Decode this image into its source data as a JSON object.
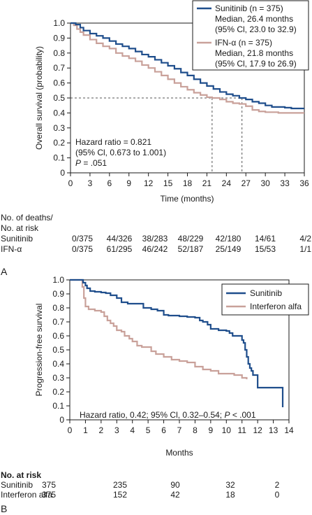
{
  "colors": {
    "sunitinib": "#1f4e8c",
    "comparator": "#c9a19a",
    "reference_lines": "#555555",
    "text": "#1a1a1a"
  },
  "chart_data": [
    {
      "panel": "A",
      "type": "line",
      "title": "",
      "xlabel": "Time (months)",
      "ylabel": "Overall survival (probability)",
      "xlim": [
        0,
        36
      ],
      "ylim": [
        0,
        1.0
      ],
      "xticks": [
        0,
        3,
        6,
        9,
        12,
        15,
        18,
        21,
        24,
        27,
        30,
        33,
        36
      ],
      "yticks": [
        "0",
        "0.1",
        "0.2",
        "0.3",
        "0.4",
        "0.5",
        "0.6",
        "0.7",
        "0.8",
        "0.9",
        "1.0"
      ],
      "grid": false,
      "legend_position": "top-right",
      "series": [
        {
          "name": "Sunitinib (n = 375)",
          "legend_lines": [
            "Sunitinib (n = 375)",
            "Median, 26.4 months",
            "(95% Cl, 23.0 to 32.9)"
          ],
          "color_key": "sunitinib",
          "points": [
            [
              0,
              1.0
            ],
            [
              0.8,
              0.99
            ],
            [
              1.5,
              0.97
            ],
            [
              2,
              0.95
            ],
            [
              3,
              0.93
            ],
            [
              4,
              0.915
            ],
            [
              5,
              0.9
            ],
            [
              6,
              0.88
            ],
            [
              7,
              0.86
            ],
            [
              8,
              0.845
            ],
            [
              9,
              0.83
            ],
            [
              10,
              0.81
            ],
            [
              11,
              0.79
            ],
            [
              12,
              0.775
            ],
            [
              13,
              0.755
            ],
            [
              14,
              0.735
            ],
            [
              15,
              0.715
            ],
            [
              16,
              0.695
            ],
            [
              17,
              0.67
            ],
            [
              18,
              0.65
            ],
            [
              19,
              0.625
            ],
            [
              20,
              0.6
            ],
            [
              21,
              0.58
            ],
            [
              22,
              0.56
            ],
            [
              23,
              0.54
            ],
            [
              24,
              0.525
            ],
            [
              25,
              0.515
            ],
            [
              26,
              0.5
            ],
            [
              27,
              0.49
            ],
            [
              28,
              0.475
            ],
            [
              29,
              0.465
            ],
            [
              30,
              0.45
            ],
            [
              31,
              0.44
            ],
            [
              32,
              0.44
            ],
            [
              33,
              0.435
            ],
            [
              34,
              0.43
            ],
            [
              36,
              0.43
            ]
          ]
        },
        {
          "name": "IFN-α (n = 375)",
          "legend_lines": [
            "IFN-α (n = 375)",
            "Median, 21.8 months",
            "(95% Cl, 17.9 to 26.9)"
          ],
          "color_key": "comparator",
          "points": [
            [
              0,
              1.0
            ],
            [
              0.5,
              0.985
            ],
            [
              1,
              0.96
            ],
            [
              1.5,
              0.94
            ],
            [
              2,
              0.92
            ],
            [
              3,
              0.89
            ],
            [
              4,
              0.865
            ],
            [
              5,
              0.845
            ],
            [
              6,
              0.83
            ],
            [
              7,
              0.8
            ],
            [
              8,
              0.78
            ],
            [
              9,
              0.765
            ],
            [
              10,
              0.745
            ],
            [
              11,
              0.72
            ],
            [
              12,
              0.7
            ],
            [
              13,
              0.675
            ],
            [
              14,
              0.65
            ],
            [
              15,
              0.625
            ],
            [
              16,
              0.6
            ],
            [
              17,
              0.575
            ],
            [
              18,
              0.555
            ],
            [
              19,
              0.535
            ],
            [
              20,
              0.52
            ],
            [
              21,
              0.505
            ],
            [
              21.8,
              0.5
            ],
            [
              23,
              0.49
            ],
            [
              24,
              0.475
            ],
            [
              25,
              0.465
            ],
            [
              26,
              0.46
            ],
            [
              27,
              0.445
            ],
            [
              28,
              0.42
            ],
            [
              29,
              0.41
            ],
            [
              30,
              0.405
            ],
            [
              32,
              0.4
            ],
            [
              34,
              0.4
            ],
            [
              36,
              0.4
            ]
          ]
        }
      ],
      "reference_lines": [
        {
          "type": "h",
          "y": 0.5,
          "x_end": 26.4
        },
        {
          "type": "v",
          "x": 21.8,
          "y_end": 0.5
        },
        {
          "type": "v",
          "x": 26.4,
          "y_end": 0.5
        }
      ],
      "annotation": {
        "lines": [
          "Hazard ratio = 0.821",
          "(95% Cl, 0.673 to 1.001)"
        ],
        "p_label": "P",
        "p_value": " = .051"
      },
      "risk_table": {
        "header": [
          "No. of deaths/",
          "No. at risk"
        ],
        "bold_labels": false,
        "rows": [
          {
            "label": "Sunitinib",
            "values": [
              "0/375",
              "44/326",
              "38/283",
              "48/229",
              "42/180",
              "14/61",
              "4/2"
            ]
          },
          {
            "label": "IFN-α",
            "values": [
              "0/375",
              "61/295",
              "46/242",
              "52/187",
              "25/149",
              "15/53",
              "1/1"
            ]
          }
        ]
      },
      "panel_letter": "A"
    },
    {
      "panel": "B",
      "type": "line",
      "title": "",
      "xlabel": "Months",
      "ylabel": "Progression-free survival",
      "xlim": [
        0,
        14
      ],
      "ylim": [
        0,
        1.0
      ],
      "xticks": [
        0,
        1,
        2,
        3,
        4,
        5,
        6,
        7,
        8,
        9,
        10,
        11,
        12,
        13,
        14
      ],
      "yticks": [
        "0",
        "0.1",
        "0.2",
        "0.3",
        "0.4",
        "0.5",
        "0.6",
        "0.7",
        "0.8",
        "0.9",
        "1.0"
      ],
      "grid": false,
      "legend_position": "top-right",
      "series": [
        {
          "name": "Sunitinib",
          "legend_lines": [
            "Sunitinib"
          ],
          "color_key": "sunitinib",
          "points": [
            [
              0,
              1.0
            ],
            [
              0.7,
              1.0
            ],
            [
              0.85,
              0.98
            ],
            [
              1,
              0.96
            ],
            [
              1.1,
              0.94
            ],
            [
              1.3,
              0.92
            ],
            [
              1.6,
              0.915
            ],
            [
              2,
              0.91
            ],
            [
              2.3,
              0.905
            ],
            [
              2.6,
              0.89
            ],
            [
              3,
              0.87
            ],
            [
              3.3,
              0.84
            ],
            [
              3.7,
              0.83
            ],
            [
              4,
              0.83
            ],
            [
              4.4,
              0.83
            ],
            [
              4.7,
              0.8
            ],
            [
              5.2,
              0.79
            ],
            [
              5.6,
              0.78
            ],
            [
              6,
              0.75
            ],
            [
              6.3,
              0.745
            ],
            [
              7,
              0.74
            ],
            [
              7.5,
              0.735
            ],
            [
              8,
              0.73
            ],
            [
              8.3,
              0.71
            ],
            [
              8.5,
              0.7
            ],
            [
              8.8,
              0.68
            ],
            [
              9,
              0.65
            ],
            [
              9.5,
              0.64
            ],
            [
              10,
              0.635
            ],
            [
              10.2,
              0.62
            ],
            [
              10.4,
              0.6
            ],
            [
              10.8,
              0.6
            ],
            [
              11,
              0.57
            ],
            [
              11.1,
              0.55
            ],
            [
              11.2,
              0.5
            ],
            [
              11.3,
              0.45
            ],
            [
              11.4,
              0.4
            ],
            [
              11.5,
              0.37
            ],
            [
              11.6,
              0.35
            ],
            [
              11.7,
              0.32
            ],
            [
              12.0,
              0.23
            ],
            [
              13.6,
              0.23
            ],
            [
              13.6,
              0.09
            ]
          ]
        },
        {
          "name": "Interferon alfa",
          "legend_lines": [
            "Interferon alfa"
          ],
          "color_key": "comparator",
          "points": [
            [
              0,
              1.0
            ],
            [
              0.7,
              1.0
            ],
            [
              0.8,
              0.95
            ],
            [
              0.9,
              0.87
            ],
            [
              1,
              0.81
            ],
            [
              1.2,
              0.79
            ],
            [
              1.6,
              0.78
            ],
            [
              2,
              0.77
            ],
            [
              2.2,
              0.74
            ],
            [
              2.4,
              0.71
            ],
            [
              2.6,
              0.69
            ],
            [
              2.8,
              0.67
            ],
            [
              3,
              0.64
            ],
            [
              3.3,
              0.63
            ],
            [
              3.5,
              0.6
            ],
            [
              3.8,
              0.58
            ],
            [
              4,
              0.56
            ],
            [
              4.3,
              0.53
            ],
            [
              4.6,
              0.52
            ],
            [
              5,
              0.52
            ],
            [
              5.2,
              0.49
            ],
            [
              5.5,
              0.47
            ],
            [
              6,
              0.45
            ],
            [
              6.5,
              0.43
            ],
            [
              7,
              0.42
            ],
            [
              7.5,
              0.41
            ],
            [
              8,
              0.38
            ],
            [
              8.5,
              0.36
            ],
            [
              9,
              0.35
            ],
            [
              9.5,
              0.33
            ],
            [
              10,
              0.33
            ],
            [
              10.5,
              0.32
            ],
            [
              11,
              0.3
            ],
            [
              11.3,
              0.29
            ]
          ]
        }
      ],
      "reference_lines": [],
      "annotation": {
        "lines": [],
        "b_text_1": "Hazard ratio, 0.42; 95% Cl, 0.32–0.54; ",
        "p_label": "P",
        "b_text_2": " < .001"
      },
      "risk_table": {
        "header": [
          "No. at risk"
        ],
        "bold_labels": true,
        "rows": [
          {
            "label": "Sunitinib",
            "values": [
              "375",
              "235",
              "90",
              "32",
              "2"
            ]
          },
          {
            "label": "Interferon alfa",
            "values": [
              "375",
              "152",
              "42",
              "18",
              "0"
            ]
          }
        ]
      },
      "panel_letter": "B"
    }
  ]
}
